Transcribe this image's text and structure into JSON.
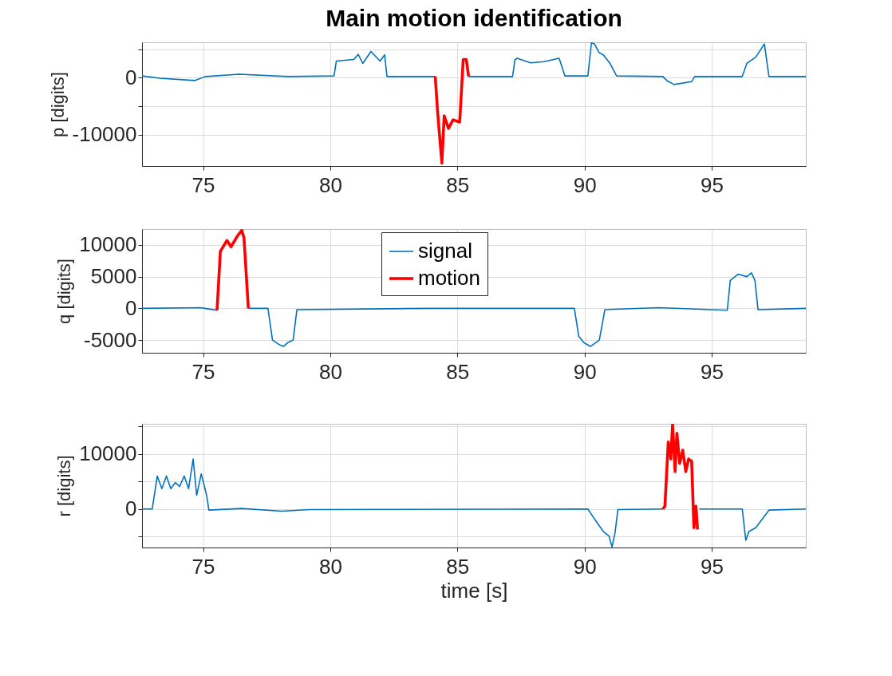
{
  "chart_data": [
    {
      "type": "line",
      "title": "Main motion identification",
      "ylabel": "p [digits]",
      "xlim": [
        72.6,
        98.7
      ],
      "xticks": [
        75,
        80,
        85,
        90,
        95
      ],
      "ylim": [
        -15500,
        6200
      ],
      "yticks": [
        {
          "value": 5000,
          "label": null
        },
        0,
        {
          "value": -5000,
          "label": null
        },
        -10000
      ],
      "grid": true,
      "series": [
        {
          "color": "#0072bd",
          "x": [
            72.6,
            73.29,
            74.68,
            75.1,
            76.42,
            78.33,
            80.15,
            80.24,
            80.93,
            81.1,
            81.28,
            81.6,
            81.96,
            82.14,
            82.23,
            84.13,
            84.2,
            85.44,
            87.17,
            87.26,
            87.35,
            87.88,
            88.4,
            89.0,
            89.23,
            90.13,
            90.27,
            90.39,
            90.57,
            90.74,
            91.0,
            91.26,
            93.08,
            93.26,
            93.52,
            94.21,
            94.33,
            96.2,
            96.38,
            96.73,
            97.07,
            97.25,
            98.7
          ],
          "values": [
            300,
            -100,
            -500,
            200,
            600,
            200,
            300,
            2900,
            3200,
            4100,
            2500,
            4600,
            2900,
            4000,
            200,
            200,
            null,
            200,
            200,
            3100,
            3400,
            2600,
            2800,
            3400,
            300,
            300,
            6100,
            5900,
            4400,
            4000,
            2500,
            300,
            200,
            -600,
            -1200,
            -700,
            200,
            200,
            2500,
            3600,
            5900,
            200,
            200
          ]
        },
        {
          "color": "#ff0000",
          "x": [
            84.13,
            84.22,
            84.39,
            84.48,
            84.65,
            84.83,
            85.09,
            85.23,
            85.35,
            85.44
          ],
          "values": [
            200,
            -5900,
            -15000,
            -6700,
            -8900,
            -7400,
            -7800,
            3200,
            3200,
            200
          ]
        }
      ]
    },
    {
      "type": "line",
      "ylabel": "q [digits]",
      "xlim": [
        72.6,
        98.7
      ],
      "xticks": [
        75,
        80,
        85,
        90,
        95
      ],
      "ylim": [
        -7000,
        12500
      ],
      "yticks": [
        10000,
        5000,
        0,
        -5000
      ],
      "grid": true,
      "legend": "top",
      "series": [
        {
          "name": "signal",
          "color": "#0072bd",
          "x": [
            72.6,
            74.9,
            75.07,
            75.55,
            75.6,
            76.78,
            77.55,
            77.73,
            77.99,
            78.16,
            78.33,
            78.54,
            78.69,
            83.9,
            89.6,
            89.77,
            89.97,
            90.23,
            90.58,
            90.8,
            92.92,
            95.61,
            95.73,
            96.04,
            96.38,
            96.56,
            96.7,
            96.82,
            98.7
          ],
          "values": [
            0,
            100,
            0,
            -300,
            null,
            0,
            0,
            -5000,
            -5700,
            -6000,
            -5400,
            -5000,
            -200,
            0,
            0,
            -4400,
            -5400,
            -6000,
            -5000,
            -200,
            100,
            -300,
            4400,
            5400,
            5000,
            5600,
            4400,
            -200,
            0
          ]
        },
        {
          "name": "motion",
          "color": "#ff0000",
          "x": [
            75.55,
            75.68,
            75.94,
            76.1,
            76.35,
            76.52,
            76.61,
            76.78
          ],
          "values": [
            -300,
            9000,
            10700,
            9700,
            11400,
            12300,
            11100,
            0
          ]
        }
      ]
    },
    {
      "type": "line",
      "ylabel": "r [digits]",
      "xlabel": "time [s]",
      "xlim": [
        72.6,
        98.7
      ],
      "xticks": [
        75,
        80,
        85,
        90,
        95
      ],
      "ylim": [
        -7000,
        15500
      ],
      "yticks": [
        {
          "value": 15000,
          "label": null
        },
        10000,
        {
          "value": 5000,
          "label": null
        },
        0,
        {
          "value": -5000,
          "label": null
        }
      ],
      "grid": true,
      "series": [
        {
          "color": "#0072bd",
          "x": [
            72.6,
            73.0,
            73.2,
            73.38,
            73.56,
            73.73,
            73.91,
            74.08,
            74.26,
            74.43,
            74.61,
            74.75,
            74.93,
            75.14,
            75.23,
            76.53,
            78.1,
            79.19,
            90.13,
            90.39,
            90.74,
            90.96,
            91.08,
            91.2,
            91.31,
            93.08,
            93.1,
            94.51,
            96.2,
            96.34,
            96.46,
            96.73,
            97.25,
            98.7
          ],
          "values": [
            0,
            0,
            6000,
            3700,
            6000,
            3700,
            4800,
            4100,
            6000,
            3700,
            9100,
            2500,
            6400,
            2500,
            -200,
            100,
            -400,
            -100,
            0,
            -1800,
            -4100,
            -4900,
            -6900,
            -4300,
            -100,
            0,
            null,
            0,
            0,
            -5700,
            -4100,
            -3400,
            -200,
            0
          ]
        },
        {
          "color": "#ff0000",
          "x": [
            93.08,
            93.16,
            93.29,
            93.39,
            93.46,
            93.56,
            93.63,
            93.74,
            93.86,
            93.98,
            94.09,
            94.21,
            94.3,
            94.38,
            94.44
          ],
          "values": [
            0,
            500,
            12200,
            9100,
            15400,
            6800,
            13800,
            8300,
            10700,
            6800,
            9100,
            8700,
            -3400,
            500,
            -3700
          ]
        }
      ]
    }
  ]
}
